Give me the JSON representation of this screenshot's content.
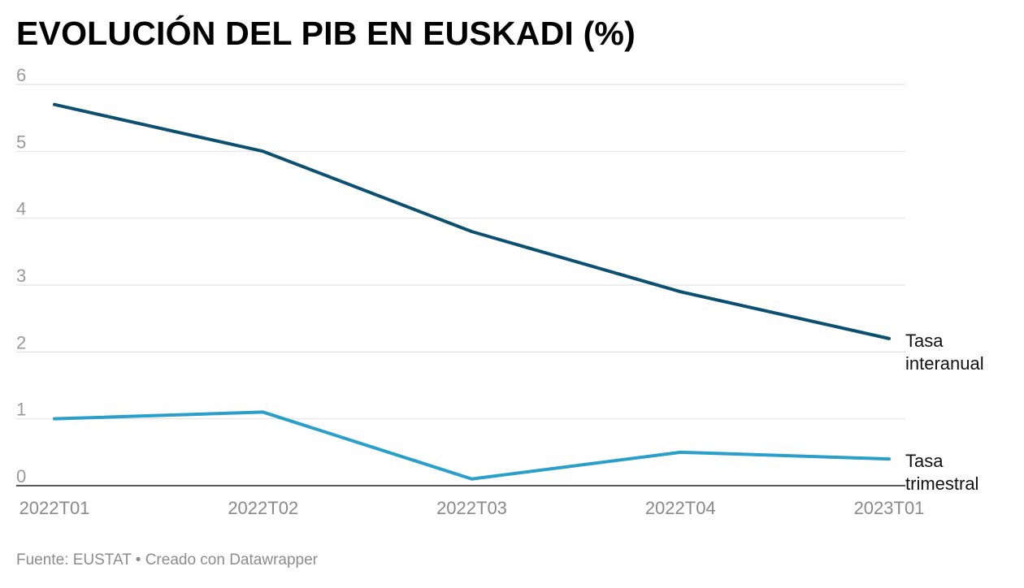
{
  "header": {
    "title": "EVOLUCIÓN DEL PIB EN EUSKADI (%)"
  },
  "footer": {
    "source": "Fuente: EUSTAT • Creado con Datawrapper"
  },
  "chart_data": {
    "type": "line",
    "title": "EVOLUCIÓN DEL PIB EN EUSKADI (%)",
    "xlabel": "",
    "ylabel": "",
    "categories": [
      "2022T01",
      "2022T02",
      "2022T03",
      "2022T04",
      "2023T01"
    ],
    "yticks": [
      0,
      1,
      2,
      3,
      4,
      5,
      6
    ],
    "ylim": [
      0,
      6
    ],
    "grid": true,
    "legend": "inline labels at line ends (right)",
    "series": [
      {
        "name": "Tasa interanual",
        "label_lines": [
          "Tasa",
          "interanual"
        ],
        "color": "#0b4f71",
        "values": [
          5.7,
          5.0,
          3.8,
          2.9,
          2.2
        ]
      },
      {
        "name": "Tasa trimestral",
        "label_lines": [
          "Tasa",
          "trimestral"
        ],
        "color": "#2a9fc9",
        "values": [
          1.0,
          1.1,
          0.1,
          0.5,
          0.4
        ]
      }
    ]
  }
}
